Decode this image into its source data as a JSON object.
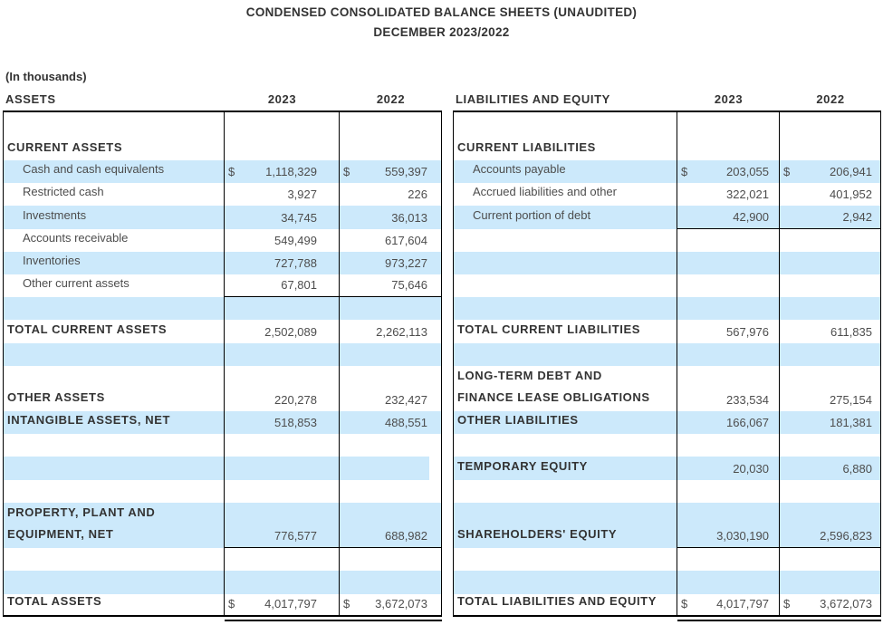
{
  "header": {
    "title": "CONDENSED CONSOLIDATED BALANCE SHEETS (UNAUDITED)",
    "subtitle": "DECEMBER 2023/2022",
    "units_note": "(In thousands)"
  },
  "currency_symbol": "$",
  "colors": {
    "band_blue": "#cce9fb",
    "border": "#000000",
    "text_regular": "#4d4d4d",
    "text_bold": "#333333"
  },
  "column_headers": {
    "left_section": "ASSETS",
    "left_year_1": "2023",
    "left_year_2": "2022",
    "right_section": "LIABILITIES AND EQUITY",
    "right_year_1": "2023",
    "right_year_2": "2022"
  },
  "left_table": {
    "rows": [
      {
        "type": "first"
      },
      {
        "type": "head",
        "label": "CURRENT ASSETS"
      },
      {
        "type": "std",
        "shade": true,
        "indent": true,
        "label": "Cash and cash equivalents",
        "v2023": "1,118,329",
        "v2022": "559,397",
        "dollar": true
      },
      {
        "type": "std",
        "indent": true,
        "label": "Restricted cash",
        "v2023": "3,927",
        "v2022": "226"
      },
      {
        "type": "std",
        "shade": true,
        "indent": true,
        "label": "Investments",
        "v2023": "34,745",
        "v2022": "36,013"
      },
      {
        "type": "std",
        "indent": true,
        "label": "Accounts receivable",
        "v2023": "549,499",
        "v2022": "617,604"
      },
      {
        "type": "std",
        "shade": true,
        "indent": true,
        "label": "Inventories",
        "v2023": "727,788",
        "v2022": "973,227"
      },
      {
        "type": "std",
        "indent": true,
        "label": "Other current assets",
        "v2023": "67,801",
        "v2022": "75,646",
        "rule_below": true
      },
      {
        "type": "std",
        "shade": true
      },
      {
        "type": "std",
        "bold": true,
        "label": "TOTAL CURRENT ASSETS",
        "v2023": "2,502,089",
        "v2022": "2,262,113"
      },
      {
        "type": "std",
        "shade": true
      },
      {
        "type": "std"
      },
      {
        "type": "std",
        "bold": true,
        "label": "OTHER ASSETS",
        "v2023": "220,278",
        "v2022": "232,427"
      },
      {
        "type": "std",
        "shade": true,
        "bold": true,
        "label": "INTANGIBLE ASSETS, NET",
        "v2023": "518,853",
        "v2022": "488,551"
      },
      {
        "type": "std"
      },
      {
        "type": "std",
        "shade": true,
        "partial_shade": true
      },
      {
        "type": "std"
      },
      {
        "type": "tall",
        "shade": true,
        "bold": true,
        "label": "PROPERTY, PLANT AND\nEQUIPMENT, NET",
        "v2023": "776,577",
        "v2022": "688,982",
        "rule_below": true
      },
      {
        "type": "std"
      },
      {
        "type": "std",
        "shade": true
      },
      {
        "type": "total",
        "bold": true,
        "label": "TOTAL ASSETS",
        "v2023": "4,017,797",
        "v2022": "3,672,073",
        "dollar": true
      }
    ]
  },
  "right_table": {
    "rows": [
      {
        "type": "first"
      },
      {
        "type": "head",
        "label": "CURRENT LIABILITIES"
      },
      {
        "type": "std",
        "shade": true,
        "indent": true,
        "label": "Accounts payable",
        "v2023": "203,055",
        "v2022": "206,941",
        "dollar": true
      },
      {
        "type": "std",
        "indent": true,
        "label": "Accrued liabilities and other",
        "v2023": "322,021",
        "v2022": "401,952"
      },
      {
        "type": "std",
        "shade": true,
        "indent": true,
        "label": "Current portion of debt",
        "v2023": "42,900",
        "v2022": "2,942",
        "rule_below": true
      },
      {
        "type": "std"
      },
      {
        "type": "std",
        "shade": true
      },
      {
        "type": "std"
      },
      {
        "type": "std",
        "shade": true
      },
      {
        "type": "std",
        "bold": true,
        "label": "TOTAL CURRENT LIABILITIES",
        "v2023": "567,976",
        "v2022": "611,835"
      },
      {
        "type": "std",
        "shade": true
      },
      {
        "type": "tall",
        "bold": true,
        "label": "LONG-TERM DEBT AND\nFINANCE LEASE OBLIGATIONS",
        "v2023": "233,534",
        "v2022": "275,154"
      },
      {
        "type": "std",
        "shade": true,
        "bold": true,
        "label": "OTHER LIABILITIES",
        "v2023": "166,067",
        "v2022": "181,381"
      },
      {
        "type": "std"
      },
      {
        "type": "std",
        "shade": true,
        "bold": true,
        "label": "TEMPORARY EQUITY",
        "v2023": "20,030",
        "v2022": "6,880"
      },
      {
        "type": "std"
      },
      {
        "type": "tall",
        "shade": true,
        "bold": true,
        "label": "SHAREHOLDERS' EQUITY",
        "v2023": "3,030,190",
        "v2022": "2,596,823",
        "rule_below": true
      },
      {
        "type": "std"
      },
      {
        "type": "std",
        "shade": true
      },
      {
        "type": "total",
        "bold": true,
        "label": "TOTAL LIABILITIES AND EQUITY",
        "v2023": "4,017,797",
        "v2022": "3,672,073",
        "dollar": true
      }
    ]
  }
}
